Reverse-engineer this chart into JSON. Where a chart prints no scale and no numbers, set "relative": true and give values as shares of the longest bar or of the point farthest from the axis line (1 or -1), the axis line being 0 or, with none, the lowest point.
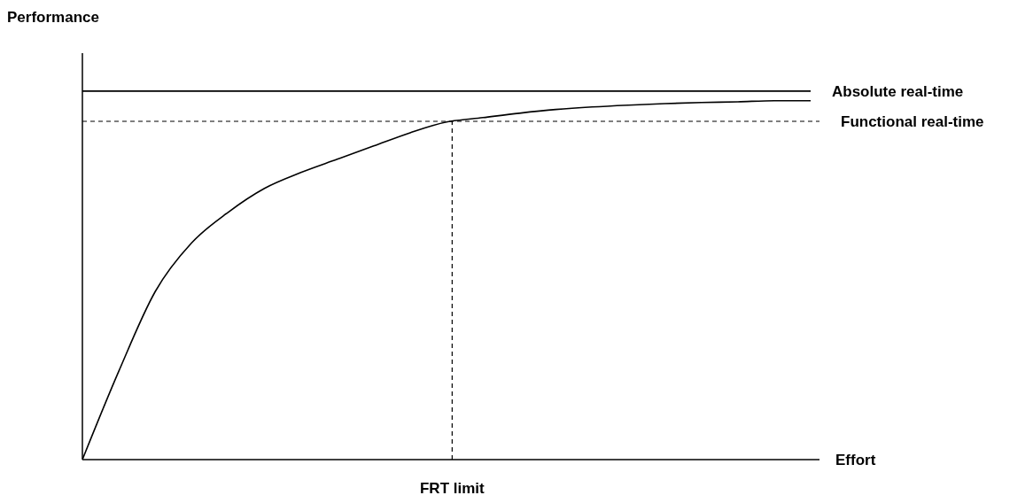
{
  "chart_data": {
    "type": "line",
    "ylabel": "Performance",
    "xlabel": "Effort",
    "relative": true,
    "marker": "none",
    "categories": [
      null,
      null,
      null,
      null,
      null,
      null,
      null,
      null,
      null,
      null,
      null,
      null,
      null,
      null,
      null,
      null,
      null,
      null,
      null,
      null,
      null
    ],
    "series": [
      {
        "name": "Absolute real-time",
        "color": "#000000",
        "values": [
          1,
          1,
          1,
          1,
          1,
          1,
          1,
          1,
          1,
          1,
          1,
          1,
          1,
          1,
          1,
          1,
          1,
          1,
          1,
          1,
          1
        ]
      },
      {
        "color": "#000000",
        "values": [
          0,
          0.24,
          0.456,
          0.588,
          0.671,
          0.736,
          0.779,
          0.815,
          0.851,
          0.887,
          0.916,
          0.928,
          0.94,
          0.95,
          0.957,
          0.962,
          0.966,
          0.969,
          0.971,
          0.974,
          0.974
        ]
      }
    ],
    "ref_lines": [
      {
        "axis": "y",
        "value": 0.918,
        "label": "Functional real-time",
        "line_style": "dashed",
        "color": "#000000"
      }
    ],
    "annotations": [
      "FRT limit"
    ]
  }
}
